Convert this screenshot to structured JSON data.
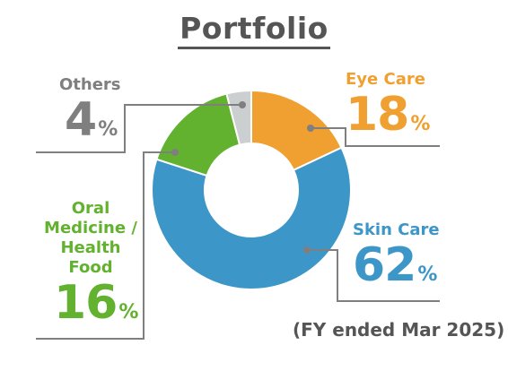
{
  "title": "Portfolio",
  "note": "(FY ended Mar 2025)",
  "percent_sign": "%",
  "chart_data": {
    "type": "pie",
    "subtype": "donut",
    "title": "Portfolio",
    "unit": "%",
    "slices": [
      {
        "label": "Eye Care",
        "value": 18,
        "color": "#f0a030"
      },
      {
        "label": "Skin Care",
        "value": 62,
        "color": "#3d96c8"
      },
      {
        "label": "Oral Medicine / Health Food",
        "value": 16,
        "color": "#62b22f"
      },
      {
        "label": "Others",
        "value": 4,
        "color": "#cccfcf"
      }
    ],
    "leader_line_color": "#7f7f7f"
  },
  "labels": {
    "eye": {
      "name_lines": [
        "Eye Care"
      ],
      "pct": "18"
    },
    "skin": {
      "name_lines": [
        "Skin Care"
      ],
      "pct": "62"
    },
    "oral": {
      "name_lines": [
        "Oral",
        "Medicine /",
        "Health",
        "Food"
      ],
      "pct": "16"
    },
    "others": {
      "name_lines": [
        "Others"
      ],
      "pct": "4"
    }
  }
}
